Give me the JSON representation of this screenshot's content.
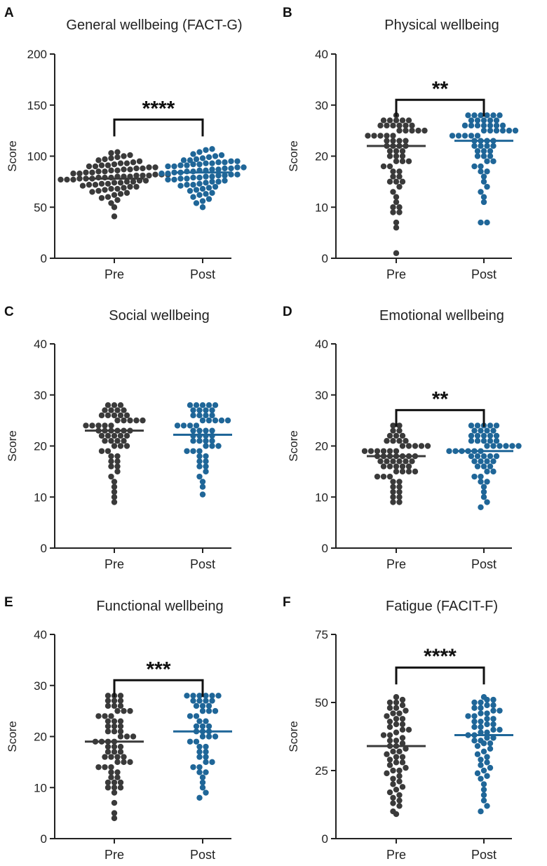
{
  "colors": {
    "pre": "#3a3a3a",
    "post": "#1f6698",
    "axis": "#222222",
    "line": "#111111"
  },
  "chart_data": [
    {
      "type": "scatter",
      "letter": "A",
      "title": "General wellbeing (FACT-G)",
      "ylabel": "Score",
      "categories": [
        "Pre",
        "Post"
      ],
      "yticks": [
        "0",
        "50",
        "100",
        "150",
        "200"
      ],
      "ylim": [
        0,
        200
      ],
      "mean": [
        78,
        84
      ],
      "significance": "****",
      "series": [
        {
          "name": "Pre",
          "values": [
            41,
            50,
            54,
            57,
            59,
            60,
            62,
            63,
            64,
            65,
            66,
            67,
            68,
            68,
            69,
            70,
            70,
            71,
            72,
            72,
            73,
            73,
            74,
            74,
            75,
            75,
            76,
            76,
            77,
            77,
            77,
            78,
            78,
            78,
            79,
            79,
            79,
            80,
            80,
            80,
            81,
            81,
            81,
            82,
            82,
            82,
            83,
            83,
            84,
            84,
            85,
            85,
            86,
            86,
            87,
            87,
            88,
            88,
            89,
            89,
            90,
            90,
            91,
            91,
            92,
            93,
            93,
            94,
            95,
            96,
            97,
            98,
            99,
            100,
            101,
            103,
            104
          ]
        },
        {
          "name": "Post",
          "values": [
            50,
            54,
            56,
            58,
            60,
            62,
            63,
            64,
            66,
            67,
            68,
            69,
            70,
            71,
            72,
            72,
            73,
            74,
            75,
            75,
            76,
            77,
            77,
            78,
            78,
            79,
            79,
            80,
            80,
            81,
            81,
            82,
            82,
            83,
            83,
            84,
            84,
            85,
            85,
            86,
            86,
            87,
            87,
            88,
            88,
            89,
            89,
            90,
            90,
            91,
            91,
            92,
            92,
            93,
            93,
            94,
            94,
            95,
            95,
            96,
            96,
            97,
            98,
            99,
            100,
            101,
            102,
            104,
            106,
            107
          ]
        }
      ]
    },
    {
      "type": "scatter",
      "letter": "B",
      "title": "Physical wellbeing",
      "ylabel": "Score",
      "categories": [
        "Pre",
        "Post"
      ],
      "yticks": [
        "0",
        "10",
        "20",
        "30",
        "40"
      ],
      "ylim": [
        0,
        40
      ],
      "mean": [
        22,
        23
      ],
      "significance": "**",
      "series": [
        {
          "name": "Pre",
          "values": [
            1,
            6,
            7,
            9,
            9,
            10,
            10,
            11,
            12,
            13,
            14,
            15,
            15,
            15,
            16,
            16,
            17,
            17,
            18,
            18,
            19,
            19,
            19,
            20,
            20,
            20,
            21,
            21,
            21,
            22,
            22,
            22,
            22,
            23,
            23,
            23,
            23,
            24,
            24,
            24,
            24,
            24,
            25,
            25,
            25,
            25,
            25,
            26,
            26,
            26,
            26,
            26,
            26,
            27,
            27,
            27,
            27,
            27,
            28
          ]
        },
        {
          "name": "Post",
          "values": [
            7,
            7,
            11,
            12,
            13,
            14,
            15,
            16,
            17,
            17,
            18,
            18,
            19,
            19,
            20,
            20,
            20,
            21,
            21,
            21,
            22,
            22,
            22,
            22,
            23,
            23,
            23,
            23,
            24,
            24,
            24,
            24,
            24,
            25,
            25,
            25,
            25,
            25,
            25,
            26,
            26,
            26,
            26,
            26,
            26,
            26,
            27,
            27,
            27,
            27,
            27,
            28,
            28,
            28,
            28,
            28,
            28
          ]
        }
      ]
    },
    {
      "type": "scatter",
      "letter": "C",
      "title": "Social wellbeing",
      "ylabel": "Score",
      "categories": [
        "Pre",
        "Post"
      ],
      "yticks": [
        "0",
        "10",
        "20",
        "30",
        "40"
      ],
      "ylim": [
        0,
        40
      ],
      "mean": [
        23,
        22.2
      ],
      "significance": "",
      "series": [
        {
          "name": "Pre",
          "values": [
            9,
            10,
            11,
            12,
            13,
            14,
            15,
            16,
            16,
            17,
            17,
            18,
            18,
            19,
            19,
            20,
            20,
            20,
            21,
            21,
            21,
            21,
            22,
            22,
            22,
            22,
            22,
            23,
            23,
            23,
            23,
            23,
            23,
            24,
            24,
            24,
            24,
            24,
            25,
            25,
            25,
            25,
            25,
            26,
            26,
            26,
            26,
            26,
            27,
            27,
            27,
            27,
            28,
            28,
            28
          ]
        },
        {
          "name": "Post",
          "values": [
            10.5,
            12,
            13,
            14,
            15,
            16,
            16,
            17,
            17,
            18,
            18,
            19,
            19,
            19,
            20,
            20,
            20,
            21,
            21,
            21,
            21,
            22,
            22,
            22,
            22,
            23,
            23,
            23,
            23,
            24,
            24,
            24,
            24,
            25,
            25,
            25,
            25,
            25,
            26,
            26,
            26,
            26,
            27,
            27,
            27,
            27,
            28,
            28,
            28,
            28,
            28
          ]
        }
      ]
    },
    {
      "type": "scatter",
      "letter": "D",
      "title": "Emotional wellbeing",
      "ylabel": "Score",
      "categories": [
        "Pre",
        "Post"
      ],
      "yticks": [
        "0",
        "10",
        "20",
        "30",
        "40"
      ],
      "ylim": [
        0,
        40
      ],
      "mean": [
        18,
        19
      ],
      "significance": "**",
      "series": [
        {
          "name": "Pre",
          "values": [
            9,
            9,
            10,
            10,
            11,
            11,
            12,
            12,
            13,
            13,
            14,
            14,
            14,
            15,
            15,
            15,
            15,
            16,
            16,
            16,
            16,
            16,
            17,
            17,
            17,
            17,
            17,
            17,
            18,
            18,
            18,
            18,
            18,
            18,
            18,
            19,
            19,
            19,
            19,
            19,
            19,
            20,
            20,
            20,
            20,
            20,
            21,
            21,
            21,
            21,
            22,
            22,
            22,
            23,
            23,
            24,
            24
          ]
        },
        {
          "name": "Post",
          "values": [
            8,
            9,
            10,
            11,
            12,
            13,
            13,
            14,
            14,
            15,
            15,
            16,
            16,
            16,
            17,
            17,
            17,
            17,
            18,
            18,
            18,
            18,
            18,
            19,
            19,
            19,
            19,
            19,
            19,
            20,
            20,
            20,
            20,
            20,
            20,
            21,
            21,
            21,
            21,
            21,
            22,
            22,
            22,
            22,
            22,
            23,
            23,
            23,
            23,
            24,
            24,
            24,
            24,
            24
          ]
        }
      ]
    },
    {
      "type": "scatter",
      "letter": "E",
      "title": "Functional wellbeing",
      "ylabel": "Score",
      "categories": [
        "Pre",
        "Post"
      ],
      "yticks": [
        "0",
        "10",
        "20",
        "30",
        "40"
      ],
      "ylim": [
        0,
        40
      ],
      "mean": [
        19,
        21
      ],
      "significance": "***",
      "series": [
        {
          "name": "Pre",
          "values": [
            4,
            5,
            7,
            9,
            10,
            10,
            10,
            11,
            11,
            11,
            12,
            12,
            13,
            13,
            14,
            14,
            14,
            15,
            15,
            15,
            16,
            16,
            16,
            16,
            17,
            17,
            17,
            18,
            18,
            18,
            19,
            19,
            19,
            19,
            20,
            20,
            20,
            21,
            21,
            21,
            22,
            22,
            22,
            23,
            23,
            23,
            24,
            24,
            24,
            25,
            25,
            25,
            26,
            26,
            26,
            27,
            27,
            27,
            28,
            28,
            28
          ]
        },
        {
          "name": "Post",
          "values": [
            8,
            9,
            10,
            11,
            12,
            13,
            13,
            14,
            14,
            15,
            15,
            16,
            16,
            17,
            17,
            18,
            18,
            19,
            19,
            20,
            20,
            20,
            21,
            21,
            21,
            22,
            22,
            22,
            23,
            23,
            24,
            24,
            25,
            25,
            25,
            26,
            26,
            26,
            27,
            27,
            27,
            27,
            28,
            28,
            28,
            28,
            28,
            28
          ]
        }
      ]
    },
    {
      "type": "scatter",
      "letter": "F",
      "title": "Fatigue (FACIT-F)",
      "ylabel": "Score",
      "categories": [
        "Pre",
        "Post"
      ],
      "yticks": [
        "0",
        "25",
        "50",
        "75"
      ],
      "ylim": [
        0,
        75
      ],
      "mean": [
        34,
        38
      ],
      "significance": "****",
      "series": [
        {
          "name": "Pre",
          "values": [
            9,
            10,
            12,
            13,
            14,
            15,
            16,
            17,
            18,
            19,
            20,
            21,
            22,
            23,
            24,
            25,
            25,
            26,
            27,
            28,
            28,
            29,
            30,
            30,
            31,
            32,
            32,
            33,
            34,
            34,
            35,
            36,
            36,
            37,
            38,
            38,
            39,
            40,
            40,
            41,
            42,
            42,
            43,
            44,
            44,
            45,
            46,
            46,
            47,
            48,
            48,
            49,
            50,
            50,
            51,
            52
          ]
        },
        {
          "name": "Post",
          "values": [
            10,
            12,
            14,
            16,
            18,
            20,
            22,
            23,
            24,
            25,
            26,
            27,
            28,
            29,
            30,
            31,
            32,
            33,
            34,
            35,
            35,
            36,
            36,
            37,
            37,
            38,
            38,
            39,
            39,
            40,
            40,
            41,
            41,
            42,
            42,
            43,
            43,
            44,
            44,
            45,
            45,
            46,
            46,
            47,
            47,
            48,
            48,
            49,
            49,
            50,
            50,
            51,
            51,
            52
          ]
        }
      ]
    }
  ]
}
